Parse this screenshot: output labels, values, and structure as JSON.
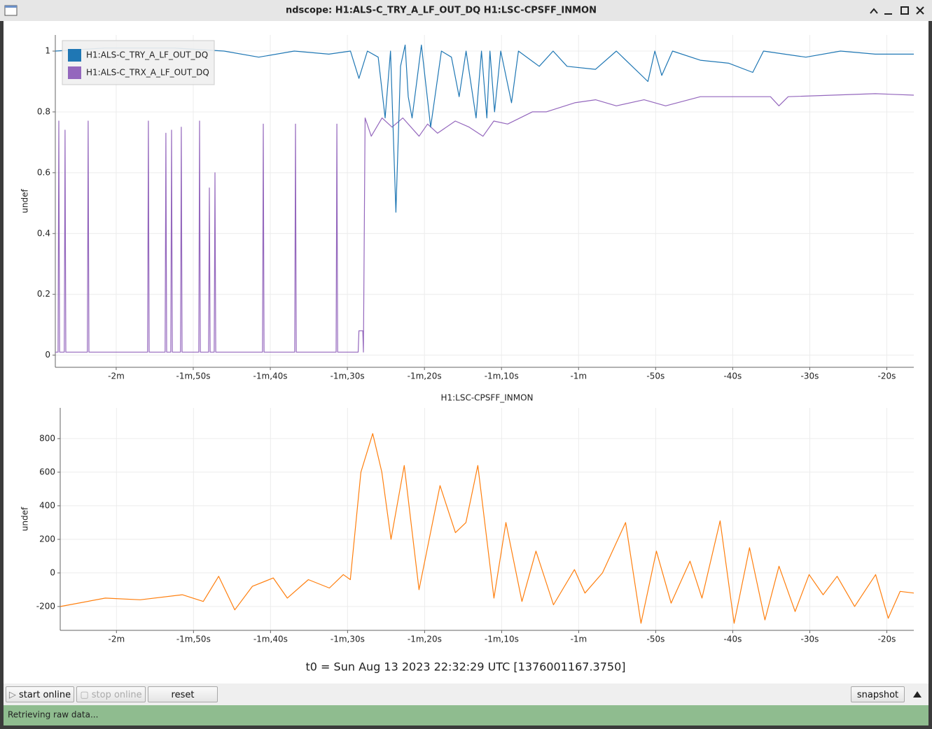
{
  "window": {
    "title": "ndscope: H1:ALS-C_TRY_A_LF_OUT_DQ H1:LSC-CPSFF_INMON"
  },
  "chart_data": [
    {
      "type": "line",
      "ylabel": "undef",
      "grid": true,
      "legend": "upper left",
      "xlim": [
        -127.9,
        -16.5
      ],
      "ylim": [
        -0.04,
        1.053
      ],
      "xticks": [
        {
          "value": -120,
          "label": "-2m"
        },
        {
          "value": -110,
          "label": "-1m,50s"
        },
        {
          "value": -100,
          "label": "-1m,40s"
        },
        {
          "value": -90,
          "label": "-1m,30s"
        },
        {
          "value": -80,
          "label": "-1m,20s"
        },
        {
          "value": -70,
          "label": "-1m,10s"
        },
        {
          "value": -60,
          "label": "-1m"
        },
        {
          "value": -50,
          "label": "-50s"
        },
        {
          "value": -40,
          "label": "-40s"
        },
        {
          "value": -30,
          "label": "-30s"
        },
        {
          "value": -20,
          "label": "-20s"
        }
      ],
      "yticks": [
        0,
        0.2,
        0.4,
        0.6,
        0.8,
        1
      ],
      "series": [
        {
          "name": "H1:ALS-C_TRX_A_LF_OUT_DQ",
          "color": "#9467bd",
          "x": [
            -127.9,
            -127.55,
            -127.45,
            -127.35,
            -126.74,
            -126.64,
            -126.54,
            -123.74,
            -123.64,
            -123.54,
            -120,
            -115.92,
            -115.82,
            -115.72,
            -113.65,
            -113.55,
            -113.45,
            -112.92,
            -112.82,
            -112.72,
            -111.65,
            -111.55,
            -111.45,
            -109.28,
            -109.18,
            -109.08,
            -108.01,
            -107.91,
            -107.81,
            -107.28,
            -107.18,
            -107.08,
            -104,
            -101.01,
            -100.91,
            -100.81,
            -96.83,
            -96.73,
            -96.63,
            -91.46,
            -91.36,
            -91.26,
            -88.6,
            -88.5,
            -88.0,
            -87.92,
            -87.7,
            -86.9,
            -85.5,
            -84.2,
            -82.8,
            -80.7,
            -79.6,
            -78.3,
            -76.0,
            -74.2,
            -72.4,
            -71.0,
            -69.2,
            -66.0,
            -64.2,
            -60.5,
            -57.8,
            -55.1,
            -51.5,
            -48.7,
            -44.2,
            -35.1,
            -34.0,
            -32.8,
            -21.5,
            -16.5
          ],
          "values": [
            0.01,
            0.01,
            0.77,
            0.01,
            0.01,
            0.74,
            0.01,
            0.01,
            0.77,
            0.01,
            0.01,
            0.01,
            0.77,
            0.01,
            0.01,
            0.73,
            0.01,
            0.01,
            0.74,
            0.01,
            0.01,
            0.75,
            0.01,
            0.01,
            0.77,
            0.01,
            0.01,
            0.55,
            0.01,
            0.01,
            0.6,
            0.01,
            0.01,
            0.01,
            0.76,
            0.01,
            0.01,
            0.76,
            0.01,
            0.01,
            0.76,
            0.01,
            0.01,
            0.08,
            0.08,
            0.01,
            0.78,
            0.72,
            0.78,
            0.75,
            0.78,
            0.72,
            0.76,
            0.73,
            0.77,
            0.75,
            0.72,
            0.77,
            0.76,
            0.8,
            0.8,
            0.83,
            0.84,
            0.82,
            0.84,
            0.82,
            0.85,
            0.85,
            0.82,
            0.85,
            0.86,
            0.855
          ]
        },
        {
          "name": "H1:ALS-C_TRY_A_LF_OUT_DQ",
          "color": "#1f77b4",
          "x": [
            -127.9,
            -121.5,
            -112.4,
            -106.0,
            -101.5,
            -96.9,
            -92.4,
            -89.6,
            -88.5,
            -87.4,
            -86.0,
            -85.1,
            -84.4,
            -83.7,
            -83.1,
            -82.5,
            -82.1,
            -81.6,
            -81.0,
            -80.4,
            -79.2,
            -77.8,
            -76.5,
            -75.5,
            -74.6,
            -73.3,
            -72.6,
            -71.9,
            -71.5,
            -70.9,
            -70.1,
            -68.7,
            -67.8,
            -65.1,
            -63.3,
            -61.5,
            -57.8,
            -55.1,
            -51.0,
            -50.1,
            -49.2,
            -47.8,
            -44.2,
            -40.5,
            -37.4,
            -36.0,
            -30.5,
            -26.0,
            -21.5,
            -16.5
          ],
          "values": [
            1.0,
            1.01,
            1.01,
            1.0,
            0.98,
            1.0,
            0.99,
            1.0,
            0.91,
            1.0,
            0.98,
            0.78,
            1.0,
            0.47,
            0.95,
            1.02,
            0.85,
            0.78,
            0.9,
            1.02,
            0.75,
            1.0,
            0.98,
            0.85,
            1.0,
            0.78,
            1.0,
            0.78,
            1.0,
            0.8,
            1.0,
            0.83,
            1.0,
            0.95,
            1.0,
            0.95,
            0.94,
            1.0,
            0.9,
            1.0,
            0.92,
            1.0,
            0.97,
            0.96,
            0.93,
            1.0,
            0.98,
            1.0,
            0.99,
            0.99
          ]
        }
      ]
    },
    {
      "type": "line",
      "title": "H1:LSC-CPSFF_INMON",
      "ylabel": "undef",
      "grid": true,
      "xlim": [
        -127.3,
        -16.5
      ],
      "ylim": [
        -342,
        983
      ],
      "xticks": [
        {
          "value": -120,
          "label": "-2m"
        },
        {
          "value": -110,
          "label": "-1m,50s"
        },
        {
          "value": -100,
          "label": "-1m,40s"
        },
        {
          "value": -90,
          "label": "-1m,30s"
        },
        {
          "value": -80,
          "label": "-1m,20s"
        },
        {
          "value": -70,
          "label": "-1m,10s"
        },
        {
          "value": -60,
          "label": "-1m"
        },
        {
          "value": -50,
          "label": "-50s"
        },
        {
          "value": -40,
          "label": "-40s"
        },
        {
          "value": -30,
          "label": "-30s"
        },
        {
          "value": -20,
          "label": "-20s"
        }
      ],
      "yticks": [
        -200,
        0,
        200,
        400,
        600,
        800
      ],
      "series": [
        {
          "name": "H1:LSC-CPSFF_INMON",
          "color": "#ff7f0e",
          "x": [
            -127.27,
            -121.45,
            -116.91,
            -111.45,
            -108.73,
            -106.73,
            -104.64,
            -102.36,
            -99.64,
            -97.82,
            -95.09,
            -92.36,
            -90.55,
            -89.64,
            -88.27,
            -86.73,
            -85.55,
            -84.36,
            -82.64,
            -80.73,
            -78.0,
            -76.0,
            -74.64,
            -73.09,
            -71.0,
            -69.45,
            -67.36,
            -65.55,
            -63.27,
            -60.55,
            -59.18,
            -56.91,
            -53.91,
            -51.91,
            -49.91,
            -48.0,
            -45.55,
            -44.0,
            -41.64,
            -39.82,
            -37.82,
            -35.82,
            -34.0,
            -31.91,
            -30.09,
            -28.27,
            -26.45,
            -24.18,
            -21.45,
            -19.82,
            -18.27,
            -16.5
          ],
          "values": [
            -200,
            -150,
            -160,
            -130,
            -170,
            -20,
            -220,
            -80,
            -30,
            -150,
            -40,
            -90,
            -10,
            -40,
            600,
            830,
            600,
            200,
            640,
            -100,
            520,
            240,
            300,
            640,
            -150,
            300,
            -170,
            130,
            -190,
            20,
            -120,
            0,
            300,
            -300,
            130,
            -180,
            70,
            -150,
            310,
            -300,
            150,
            -280,
            40,
            -230,
            -10,
            -130,
            -20,
            -200,
            -10,
            -270,
            -110,
            -120
          ]
        }
      ]
    }
  ],
  "footer": {
    "t0": "t0 = Sun Aug 13 2023 22:32:29 UTC [1376001167.3750]"
  },
  "buttons": [
    "start online",
    "stop online",
    "reset",
    "snapshot"
  ],
  "status": "Retrieving raw data..."
}
